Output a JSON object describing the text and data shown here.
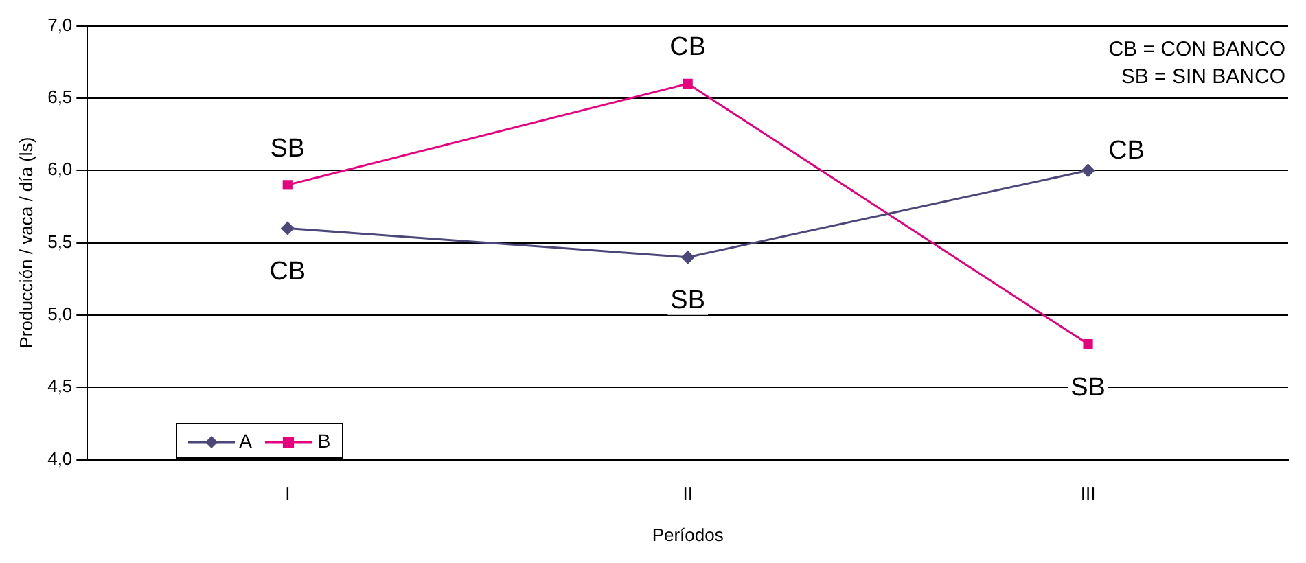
{
  "chart_data": {
    "type": "line",
    "xlabel": "Períodos",
    "ylabel": "Producción / vaca / día (ls)",
    "categories": [
      "I",
      "II",
      "III"
    ],
    "series": [
      {
        "name": "A",
        "color": "#4b4778",
        "values": [
          5.6,
          5.4,
          6.0
        ],
        "marker": "diamond"
      },
      {
        "name": "B",
        "color": "#e6007e",
        "values": [
          5.9,
          6.6,
          4.8
        ],
        "marker": "square"
      }
    ],
    "ylim": [
      4.0,
      7.0
    ],
    "yticks": [
      {
        "value": 4.0,
        "label": "4,0"
      },
      {
        "value": 4.5,
        "label": "4,5"
      },
      {
        "value": 5.0,
        "label": "5,0"
      },
      {
        "value": 5.5,
        "label": "5,5"
      },
      {
        "value": 6.0,
        "label": "6,0"
      },
      {
        "value": 6.5,
        "label": "6,5"
      },
      {
        "value": 7.0,
        "label": "7,0"
      }
    ],
    "grid": "y",
    "legend": "bottom left",
    "line_style": "solid",
    "annotations": [
      "CB = CON BANCO",
      "SB = SIN BANCO",
      {
        "text": "SB",
        "x": "I",
        "y": 5.9
      },
      {
        "text": "CB",
        "x": "I",
        "y": 5.6
      },
      {
        "text": "CB",
        "x": "II",
        "y": 6.6
      },
      {
        "text": "SB",
        "x": "II",
        "y": 5.4
      },
      {
        "text": "CB",
        "x": "III",
        "y": 6.0
      },
      {
        "text": "SB",
        "x": "III",
        "y": 4.8
      }
    ]
  }
}
